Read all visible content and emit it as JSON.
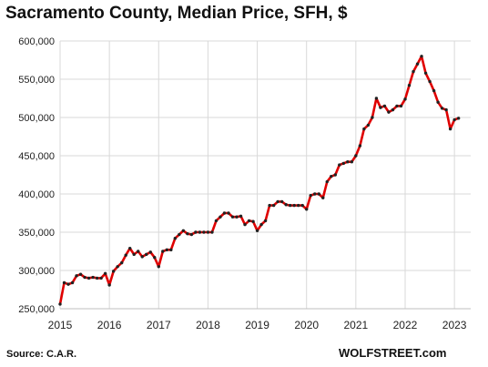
{
  "title": "Sacramento County, Median Price, SFH, $",
  "source": "Source: C.A.R.",
  "brand": "WOLFSTREET.com",
  "chart_data": {
    "type": "line",
    "title": "Sacramento County, Median Price, SFH, $",
    "xlabel": "",
    "ylabel": "",
    "x_start": "2015-01",
    "x_frequency": "monthly",
    "xlim": [
      2015,
      2023.33
    ],
    "ylim": [
      250000,
      600000
    ],
    "y_ticks": [
      "250,000",
      "300,000",
      "350,000",
      "400,000",
      "450,000",
      "500,000",
      "550,000",
      "600,000"
    ],
    "x_ticks": [
      "2015",
      "2016",
      "2017",
      "2018",
      "2019",
      "2020",
      "2021",
      "2022",
      "2023"
    ],
    "grid": true,
    "legend": "none",
    "line_color": "#e00000",
    "marker_color": "#222222",
    "series": [
      {
        "values": [
          256000,
          284000,
          282000,
          284000,
          293000,
          295000,
          291000,
          290000,
          291000,
          290000,
          290000,
          296000,
          281000,
          299000,
          305000,
          310000,
          320000,
          329000,
          321000,
          325000,
          318000,
          321000,
          324000,
          317000,
          305000,
          325000,
          327000,
          327000,
          342000,
          347000,
          352000,
          348000,
          347000,
          350000,
          350000,
          350000,
          350000,
          350000,
          365000,
          370000,
          375000,
          375000,
          370000,
          370000,
          371000,
          360000,
          365000,
          364000,
          352000,
          360000,
          365000,
          385000,
          385000,
          390000,
          390000,
          386000,
          385000,
          385000,
          385000,
          385000,
          380000,
          398000,
          400000,
          400000,
          395000,
          416000,
          423000,
          425000,
          438000,
          440000,
          442000,
          442000,
          450000,
          463000,
          485000,
          490000,
          500000,
          525000,
          513000,
          515000,
          507000,
          510000,
          515000,
          515000,
          524000,
          542000,
          560000,
          570000,
          580000,
          558000,
          547000,
          535000,
          520000,
          512000,
          510000,
          485000,
          497000,
          499000
        ]
      }
    ]
  }
}
